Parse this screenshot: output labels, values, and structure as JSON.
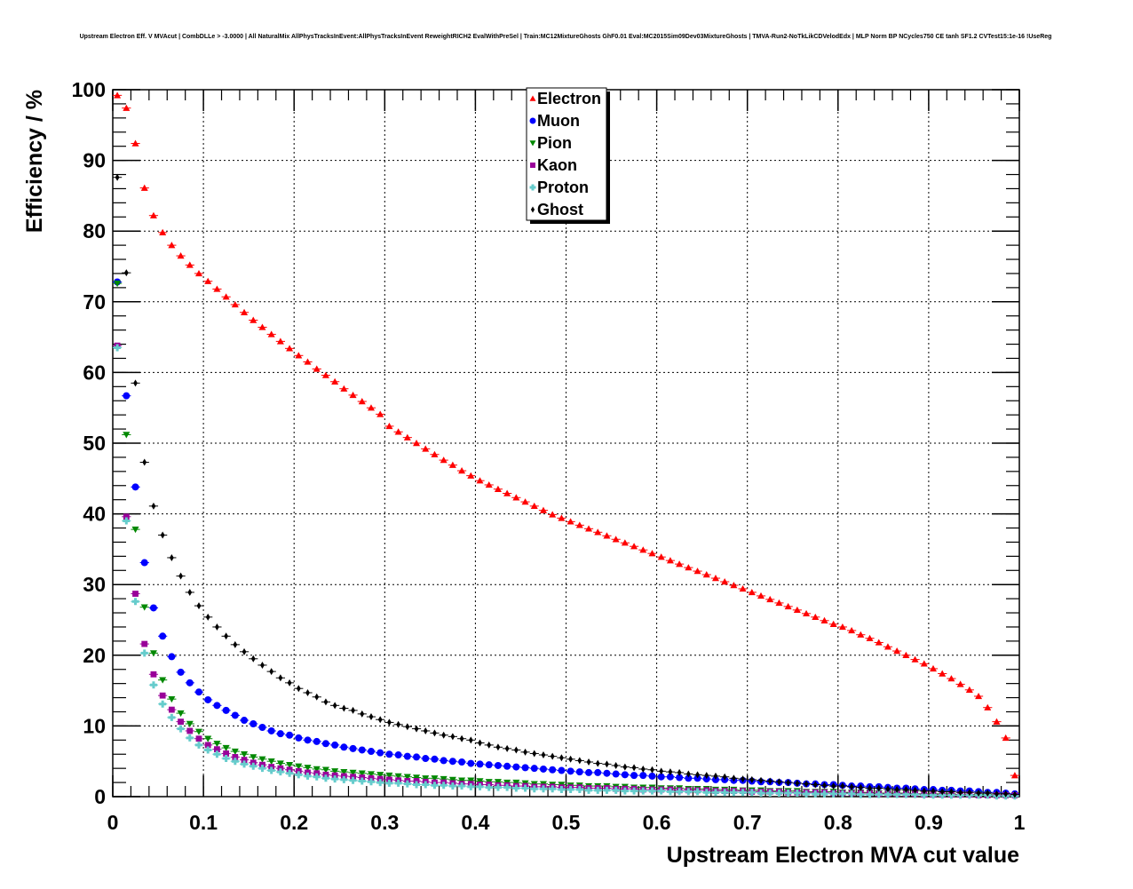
{
  "chart_data": {
    "type": "scatter",
    "title": "Upstream Electron Eff. V MVAcut | CombDLLe > -3.0000 | All NaturalMix AllPhysTracksInEvent:AllPhysTracksInEvent ReweightRICH2 EvalWithPreSel | Train:MC12MixtureGhosts GhF0.01 Eval:MC2015Sim09Dev03MixtureGhosts | TMVA-Run2-NoTkLikCDVelodEdx | MLP Norm BP NCycles750 CE tanh SF1.2 CVTest15:1e-16 !UseReg",
    "xlabel": "Upstream Electron MVA cut value",
    "ylabel": "Efficiency / %",
    "xlim": [
      0,
      1
    ],
    "ylim": [
      0,
      100
    ],
    "grid": true,
    "legend_position": "top-center",
    "x_ticks": [
      "0",
      "0.1",
      "0.2",
      "0.3",
      "0.4",
      "0.5",
      "0.6",
      "0.7",
      "0.8",
      "0.9",
      "1"
    ],
    "y_ticks": [
      "0",
      "10",
      "20",
      "30",
      "40",
      "50",
      "60",
      "70",
      "80",
      "90",
      "100"
    ],
    "x_bin_start": 0.005,
    "x_bin_width": 0.01,
    "series": [
      {
        "name": "Electron",
        "color": "#ff0000",
        "marker": "triangle-up",
        "values": [
          99.2,
          97.4,
          92.4,
          86.1,
          82.2,
          79.8,
          78.0,
          76.5,
          75.2,
          74.0,
          72.9,
          71.8,
          70.7,
          69.6,
          68.5,
          67.4,
          66.4,
          65.4,
          64.4,
          63.4,
          62.4,
          61.5,
          60.5,
          59.6,
          58.7,
          57.7,
          56.8,
          55.9,
          55.0,
          54.1,
          52.4,
          51.6,
          50.8,
          50.0,
          49.2,
          48.4,
          47.6,
          46.9,
          46.1,
          45.4,
          44.7,
          44.1,
          43.5,
          42.9,
          42.3,
          41.7,
          41.1,
          40.5,
          39.9,
          39.4,
          38.9,
          38.4,
          37.9,
          37.4,
          36.9,
          36.4,
          35.9,
          35.4,
          34.9,
          34.4,
          33.9,
          33.4,
          32.9,
          32.4,
          31.9,
          31.4,
          30.9,
          30.4,
          29.9,
          29.4,
          28.9,
          28.4,
          27.9,
          27.4,
          26.9,
          26.4,
          25.9,
          25.4,
          24.9,
          24.4,
          24.0,
          23.5,
          22.9,
          22.4,
          21.8,
          21.2,
          20.6,
          20.0,
          19.4,
          18.8,
          18.1,
          17.4,
          16.7,
          15.9,
          15.1,
          14.2,
          12.6,
          10.6,
          8.3,
          3.0
        ]
      },
      {
        "name": "Muon",
        "color": "#0000ff",
        "marker": "circle",
        "values": [
          72.8,
          56.7,
          43.8,
          33.1,
          26.7,
          22.7,
          19.8,
          17.6,
          16.1,
          14.8,
          13.7,
          12.9,
          12.2,
          11.5,
          10.8,
          10.3,
          9.8,
          9.3,
          8.9,
          8.7,
          8.3,
          8.0,
          7.8,
          7.5,
          7.3,
          7.0,
          6.8,
          6.6,
          6.4,
          6.2,
          6.0,
          5.9,
          5.7,
          5.6,
          5.4,
          5.3,
          5.1,
          5.0,
          4.9,
          4.7,
          4.6,
          4.5,
          4.4,
          4.3,
          4.2,
          4.1,
          4.0,
          3.9,
          3.8,
          3.7,
          3.6,
          3.5,
          3.4,
          3.4,
          3.3,
          3.2,
          3.1,
          3.0,
          3.0,
          2.9,
          2.8,
          2.8,
          2.7,
          2.6,
          2.6,
          2.5,
          2.4,
          2.4,
          2.3,
          2.3,
          2.2,
          2.1,
          2.1,
          2.0,
          2.0,
          1.9,
          1.8,
          1.8,
          1.7,
          1.7,
          1.6,
          1.5,
          1.5,
          1.4,
          1.4,
          1.3,
          1.2,
          1.2,
          1.1,
          1.0,
          1.0,
          0.9,
          0.9,
          0.8,
          0.8,
          0.7,
          0.6,
          0.6,
          0.5,
          0.4
        ]
      },
      {
        "name": "Pion",
        "color": "#008800",
        "marker": "triangle-down",
        "values": [
          72.6,
          51.2,
          37.8,
          26.8,
          20.3,
          16.5,
          13.8,
          11.8,
          10.3,
          9.2,
          8.2,
          7.5,
          6.9,
          6.4,
          6.0,
          5.6,
          5.3,
          5.0,
          4.7,
          4.5,
          4.3,
          4.1,
          3.9,
          3.8,
          3.6,
          3.5,
          3.4,
          3.3,
          3.2,
          3.1,
          3.0,
          2.9,
          2.8,
          2.7,
          2.6,
          2.6,
          2.5,
          2.4,
          2.3,
          2.3,
          2.2,
          2.1,
          2.1,
          2.0,
          2.0,
          1.9,
          1.8,
          1.8,
          1.7,
          1.7,
          1.6,
          1.6,
          1.5,
          1.5,
          1.5,
          1.4,
          1.4,
          1.3,
          1.3,
          1.3,
          1.2,
          1.2,
          1.2,
          1.1,
          1.1,
          1.1,
          1.0,
          1.0,
          1.0,
          0.9,
          0.9,
          0.9,
          0.8,
          0.8,
          0.8,
          0.8,
          0.7,
          0.7,
          0.7,
          0.7,
          0.6,
          0.6,
          0.6,
          0.6,
          0.5,
          0.5,
          0.5,
          0.5,
          0.4,
          0.4,
          0.4,
          0.4,
          0.4,
          0.3,
          0.3,
          0.3,
          0.3,
          0.2,
          0.2,
          0.2
        ]
      },
      {
        "name": "Kaon",
        "color": "#990099",
        "marker": "square",
        "values": [
          63.8,
          39.6,
          28.7,
          21.6,
          17.3,
          14.3,
          12.3,
          10.6,
          9.3,
          8.2,
          7.3,
          6.7,
          6.1,
          5.6,
          5.2,
          4.8,
          4.5,
          4.2,
          4.0,
          3.8,
          3.6,
          3.4,
          3.3,
          3.1,
          3.0,
          2.9,
          2.8,
          2.7,
          2.6,
          2.5,
          2.4,
          2.3,
          2.2,
          2.2,
          2.1,
          2.0,
          2.0,
          1.9,
          1.8,
          1.8,
          1.7,
          1.7,
          1.6,
          1.6,
          1.5,
          1.5,
          1.4,
          1.4,
          1.4,
          1.3,
          1.3,
          1.3,
          1.2,
          1.2,
          1.2,
          1.1,
          1.1,
          1.1,
          1.0,
          1.0,
          1.0,
          1.0,
          0.9,
          0.9,
          0.9,
          0.9,
          0.8,
          0.8,
          0.8,
          0.8,
          0.7,
          0.7,
          0.7,
          0.7,
          0.6,
          0.6,
          0.6,
          0.6,
          0.6,
          0.5,
          0.5,
          0.5,
          0.5,
          0.5,
          0.4,
          0.4,
          0.4,
          0.4,
          0.4,
          0.3,
          0.3,
          0.3,
          0.3,
          0.3,
          0.3,
          0.2,
          0.2,
          0.2,
          0.2,
          0.2
        ]
      },
      {
        "name": "Proton",
        "color": "#66cccc",
        "marker": "cross",
        "values": [
          63.5,
          39.0,
          27.6,
          20.3,
          15.8,
          13.1,
          11.2,
          9.6,
          8.3,
          7.3,
          6.6,
          6.0,
          5.4,
          5.0,
          4.6,
          4.3,
          4.0,
          3.7,
          3.5,
          3.3,
          3.1,
          2.9,
          2.8,
          2.6,
          2.5,
          2.4,
          2.3,
          2.2,
          2.1,
          2.0,
          1.9,
          1.9,
          1.8,
          1.7,
          1.7,
          1.6,
          1.6,
          1.5,
          1.5,
          1.4,
          1.4,
          1.3,
          1.3,
          1.3,
          1.2,
          1.2,
          1.1,
          1.1,
          1.1,
          1.0,
          1.0,
          1.0,
          0.9,
          0.9,
          0.9,
          0.9,
          0.8,
          0.8,
          0.8,
          0.8,
          0.8,
          0.7,
          0.7,
          0.7,
          0.7,
          0.6,
          0.6,
          0.6,
          0.6,
          0.6,
          0.6,
          0.5,
          0.5,
          0.5,
          0.5,
          0.5,
          0.4,
          0.4,
          0.4,
          0.4,
          0.4,
          0.4,
          0.3,
          0.3,
          0.3,
          0.3,
          0.3,
          0.3,
          0.3,
          0.2,
          0.2,
          0.2,
          0.2,
          0.2,
          0.2,
          0.2,
          0.2,
          0.1,
          0.1,
          0.1
        ]
      },
      {
        "name": "Ghost",
        "color": "#000000",
        "marker": "diamond",
        "values": [
          87.6,
          74.1,
          58.5,
          47.3,
          41.1,
          37.0,
          33.8,
          31.2,
          28.9,
          27.0,
          25.4,
          24.0,
          22.7,
          21.5,
          20.5,
          19.5,
          18.6,
          17.7,
          16.8,
          16.1,
          15.3,
          14.7,
          14.1,
          13.4,
          12.9,
          12.5,
          12.2,
          11.7,
          11.3,
          10.9,
          10.5,
          10.2,
          9.9,
          9.6,
          9.3,
          9.0,
          8.7,
          8.5,
          8.2,
          8.0,
          7.6,
          7.3,
          7.0,
          6.8,
          6.6,
          6.3,
          6.1,
          5.9,
          5.7,
          5.5,
          5.3,
          5.1,
          4.9,
          4.7,
          4.6,
          4.4,
          4.2,
          4.1,
          3.9,
          3.8,
          3.6,
          3.5,
          3.4,
          3.2,
          3.1,
          3.0,
          2.9,
          2.8,
          2.6,
          2.5,
          2.4,
          2.3,
          2.2,
          2.1,
          2.0,
          1.9,
          1.8,
          1.7,
          1.6,
          1.5,
          1.5,
          1.4,
          1.3,
          1.2,
          1.2,
          1.1,
          1.0,
          1.0,
          0.9,
          0.8,
          0.8,
          0.7,
          0.7,
          0.6,
          0.6,
          0.5,
          0.5,
          0.4,
          0.4,
          0.3
        ]
      }
    ]
  }
}
